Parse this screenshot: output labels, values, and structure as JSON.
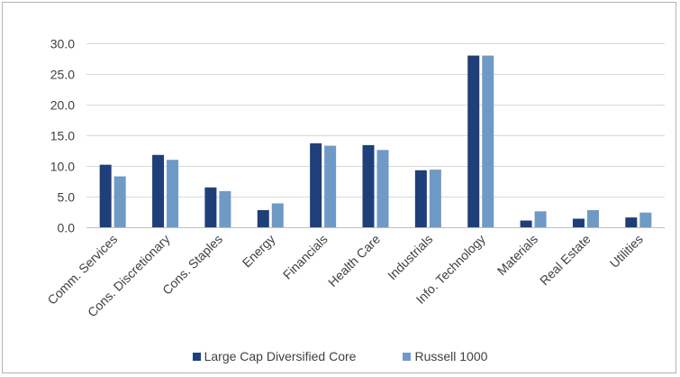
{
  "chart_data": {
    "type": "bar",
    "categories": [
      "Comm. Services",
      "Cons. Discretionary",
      "Cons. Staples",
      "Energy",
      "Financials",
      "Health Care",
      "Industrials",
      "Info. Technology",
      "Materials",
      "Real Estate",
      "Utilities"
    ],
    "series": [
      {
        "name": "Large Cap Diversified Core",
        "color": "#1f3f7a",
        "values": [
          10.2,
          11.8,
          6.5,
          2.8,
          13.7,
          13.4,
          9.3,
          28.0,
          1.1,
          1.4,
          1.6
        ]
      },
      {
        "name": "Russell 1000",
        "color": "#6f9ac6",
        "values": [
          8.3,
          11.0,
          5.9,
          3.9,
          13.3,
          12.6,
          9.4,
          28.0,
          2.6,
          2.8,
          2.4
        ]
      }
    ],
    "yticks": [
      "0.0",
      "5.0",
      "10.0",
      "15.0",
      "20.0",
      "25.0",
      "30.0"
    ],
    "ylim": [
      0,
      30
    ],
    "grid": true,
    "legend_position": "bottom",
    "title": "",
    "xlabel": "",
    "ylabel": ""
  }
}
